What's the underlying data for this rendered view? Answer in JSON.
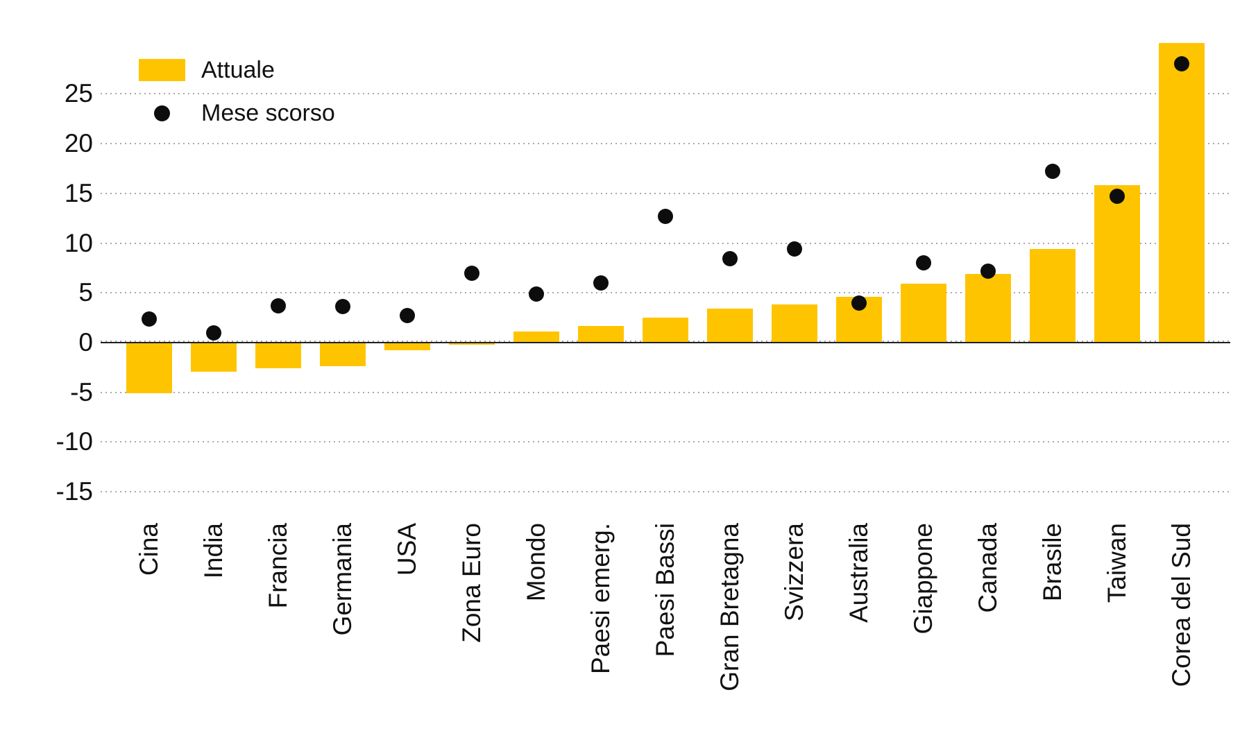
{
  "page": {
    "background": "#ffffff"
  },
  "colors": {
    "bar": "#FFC400",
    "dot": "#0d0d0d",
    "text": "#111111",
    "gridline": "#a8a8a8",
    "zero_line": "#1f1f1f"
  },
  "legend": {
    "items": [
      {
        "label": "Attuale",
        "marker": "bar-swatch-icon"
      },
      {
        "label": "Mese scorso",
        "marker": "dot-icon"
      }
    ]
  },
  "chart_data": {
    "type": "bar",
    "title": "",
    "xlabel": "",
    "ylabel": "",
    "categories": [
      "Cina",
      "India",
      "Francia",
      "Germania",
      "USA",
      "Zona Euro",
      "Mondo",
      "Paesi emerg.",
      "Paesi Bassi",
      "Gran Bretagna",
      "Svizzera",
      "Australia",
      "Giappone",
      "Canada",
      "Brasile",
      "Taiwan",
      "Corea del Sud"
    ],
    "series": [
      {
        "name": "Attuale",
        "type": "bar",
        "color": "#FFC400",
        "values": [
          -5.1,
          -2.9,
          -2.6,
          -2.4,
          -0.8,
          -0.2,
          1.1,
          1.7,
          2.5,
          3.4,
          3.8,
          4.6,
          5.9,
          6.9,
          9.4,
          15.8,
          30.1
        ]
      },
      {
        "name": "Mese scorso",
        "type": "scatter",
        "color": "#0d0d0d",
        "values": [
          2.4,
          1.0,
          3.7,
          3.6,
          2.7,
          7.0,
          4.9,
          6.0,
          12.7,
          8.4,
          9.4,
          4.0,
          8.0,
          7.2,
          17.2,
          14.7,
          28.0
        ]
      }
    ],
    "yticks": [
      25,
      20,
      15,
      10,
      5,
      0,
      -5,
      -10,
      -15
    ],
    "ylim": [
      -16.4,
      30.9
    ],
    "grid": "horizontal-dotted",
    "legend_position": "top-left"
  }
}
